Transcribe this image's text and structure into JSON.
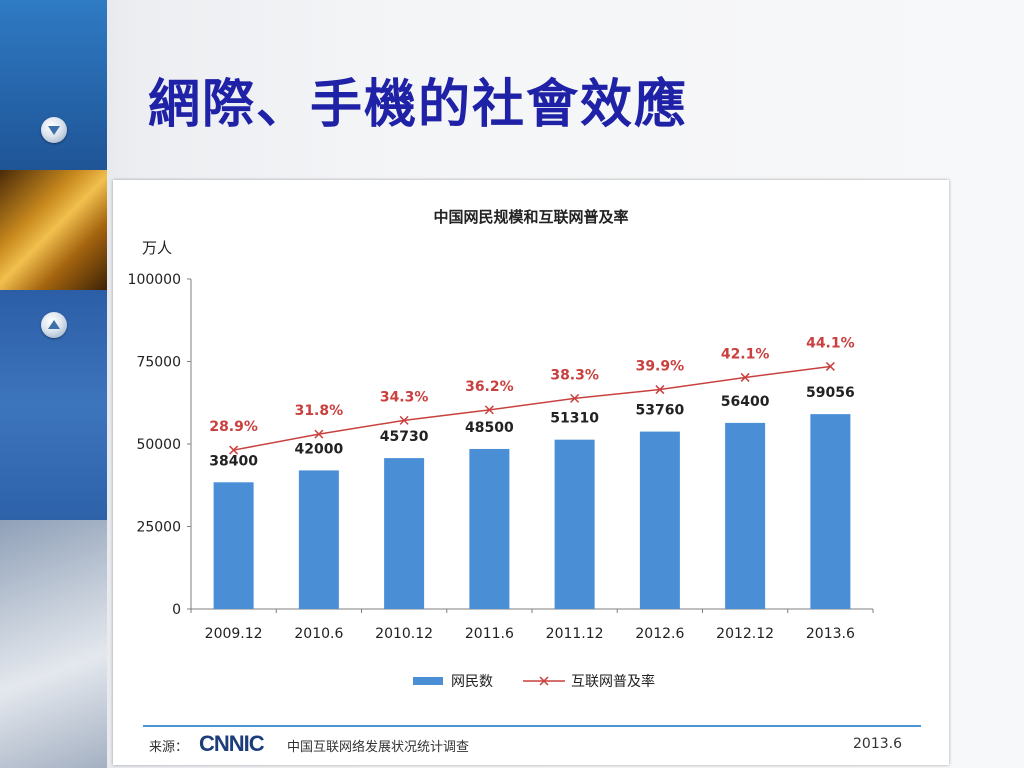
{
  "slide": {
    "title": "網際、手機的社會效應"
  },
  "colors": {
    "title": "#1f22a6",
    "bar": "#4a8fd6",
    "line": "#c9413f",
    "axis": "#7f7f7f",
    "accent_rule": "#4d93cf"
  },
  "icons": {
    "sidebar_down": "triangle-down-circle",
    "sidebar_up": "triangle-up-circle"
  },
  "chart_data": {
    "type": "bar",
    "title": "中国网民规模和互联网普及率",
    "ylabel": "万人",
    "ylim": [
      0,
      100000
    ],
    "yticks": [
      0,
      25000,
      50000,
      75000,
      100000
    ],
    "categories": [
      "2009.12",
      "2010.6",
      "2010.12",
      "2011.6",
      "2011.12",
      "2012.6",
      "2012.12",
      "2013.6"
    ],
    "series": [
      {
        "name": "网民数",
        "type": "bar",
        "values": [
          38400,
          42000,
          45730,
          48500,
          51310,
          53760,
          56400,
          59056
        ]
      },
      {
        "name": "互联网普及率",
        "type": "line",
        "values": [
          28.9,
          31.8,
          34.3,
          36.2,
          38.3,
          39.9,
          42.1,
          44.1
        ],
        "labels": [
          "28.9%",
          "31.8%",
          "34.3%",
          "36.2%",
          "38.3%",
          "39.9%",
          "42.1%",
          "44.1%"
        ]
      }
    ],
    "legend": "bottom-center",
    "grid": false
  },
  "footer": {
    "source_label": "来源：",
    "logo": "CNNIC",
    "source_text": "中国互联网络发展状况统计调查",
    "date": "2013.6"
  }
}
